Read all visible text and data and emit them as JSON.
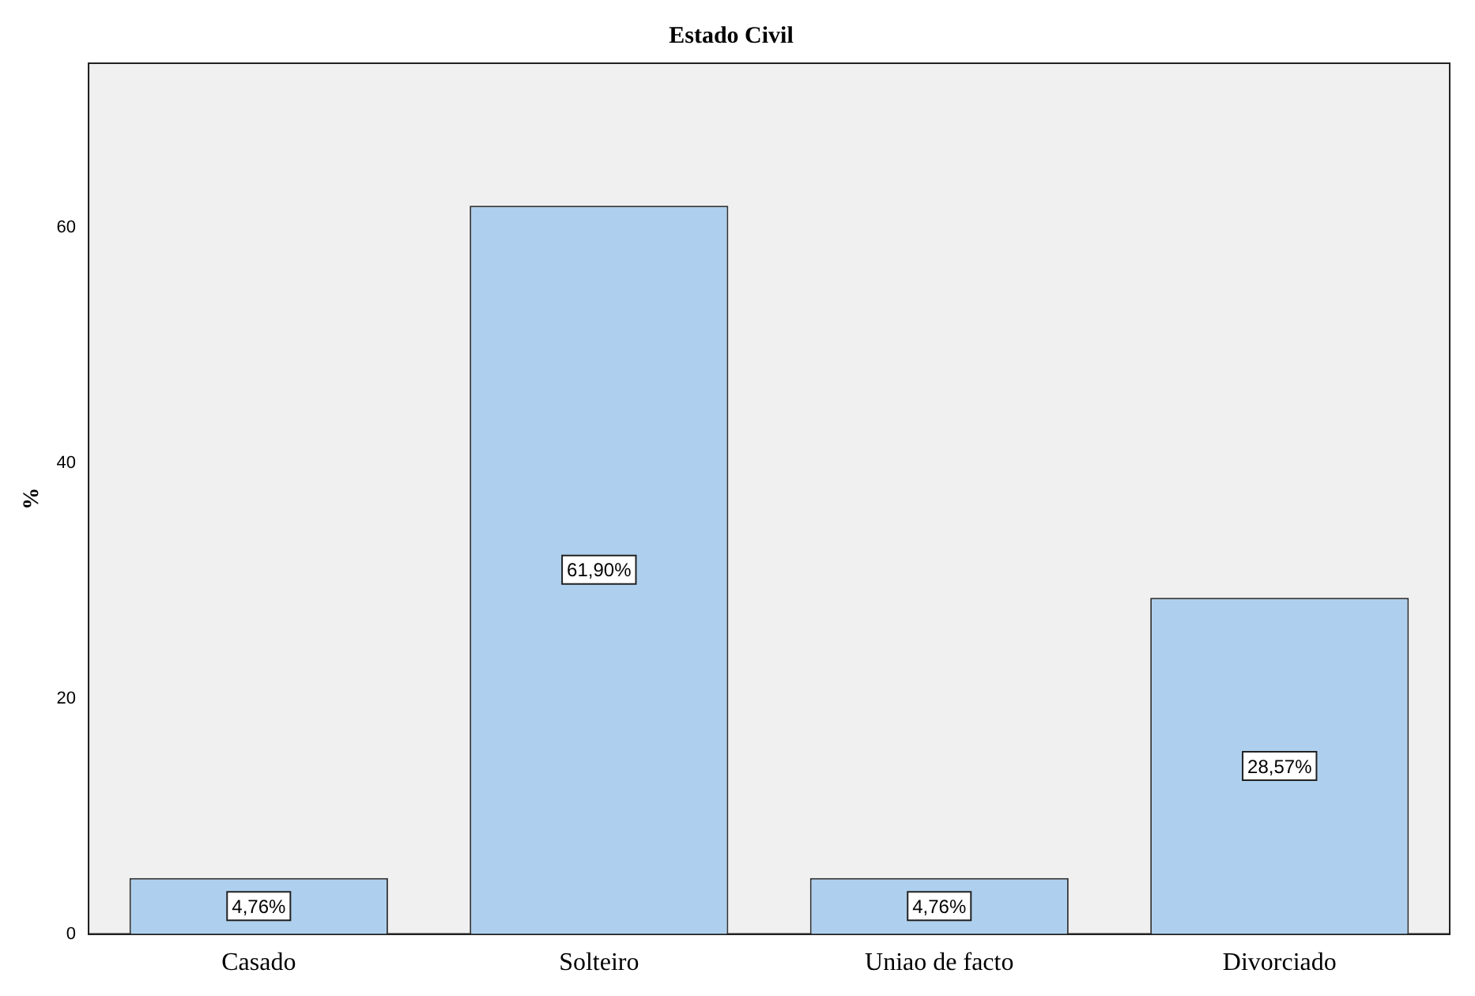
{
  "chart_data": {
    "type": "bar",
    "title": "Estado Civil",
    "ylabel": "%",
    "categories": [
      "Casado",
      "Solteiro",
      "Uniao de facto",
      "Divorciado"
    ],
    "values": [
      4.76,
      61.9,
      4.76,
      28.57
    ],
    "value_labels": [
      "4,76%",
      "61,90%",
      "4,76%",
      "28,57%"
    ],
    "color": "#aed0ee",
    "ylim": [
      0,
      74
    ],
    "yticks": [
      0,
      20,
      40,
      60
    ],
    "grid": false,
    "legend": false
  }
}
